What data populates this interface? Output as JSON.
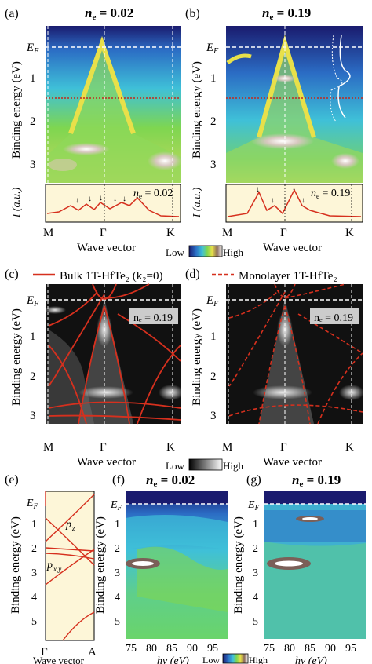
{
  "panels": {
    "a": {
      "letter": "(a)",
      "title_var": "n",
      "title_sub": "e",
      "title_val": " = 0.02",
      "inset_val": " = 0.02"
    },
    "b": {
      "letter": "(b)",
      "title_var": "n",
      "title_sub": "e",
      "title_val": " = 0.19",
      "inset_val": " = 0.19"
    },
    "c": {
      "letter": "(c)",
      "legend": "Bulk 1T-HfTe₂ (k₂=0)",
      "badge": "nₑ = 0.19"
    },
    "d": {
      "letter": "(d)",
      "legend": "Monolayer 1T-HfTe₂",
      "badge": "nₑ = 0.19"
    },
    "e": {
      "letter": "(e)",
      "label_pz": "p",
      "label_pz_sub": "z",
      "label_pxy": "p",
      "label_pxy_sub": "x,y"
    },
    "f": {
      "letter": "(f)",
      "title_val": " = 0.02"
    },
    "g": {
      "letter": "(g)",
      "title_val": " = 0.19"
    }
  },
  "axes": {
    "ef_main": "E",
    "ef_sub": "F",
    "y_ticks_bec": [
      "1",
      "2",
      "3"
    ],
    "y_ticks_fg": [
      "1",
      "2",
      "3",
      "4",
      "5"
    ],
    "ylabel": "Binding energy (eV)",
    "ylabel_intensity": "I (a.u.)",
    "k_ticks": [
      "M",
      "Γ",
      "K"
    ],
    "e_k_ticks": [
      "Γ",
      "A"
    ],
    "xlabel": "Wave vector",
    "hv_ticks": [
      "75",
      "80",
      "85",
      "90",
      "95"
    ],
    "hv_label": "hν (eV)"
  },
  "colorbar": {
    "low": "Low",
    "high": "High"
  },
  "colors": {
    "red": "#d6301e",
    "dashed_white": "#ffffff",
    "green": "#7ed650",
    "navy": "#1a1b6e",
    "cream": "#fdf6d8"
  }
}
